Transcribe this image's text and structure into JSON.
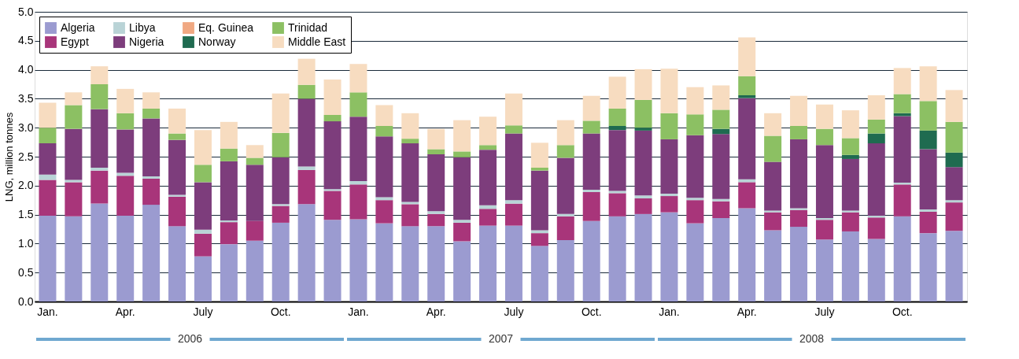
{
  "chart_data": {
    "type": "bar",
    "stacked": true,
    "ylabel": "LNG, million tonnes",
    "categories": [
      "Jan.",
      null,
      null,
      "Apr.",
      null,
      null,
      "July",
      null,
      null,
      "Oct.",
      null,
      null,
      "Jan.",
      null,
      null,
      "Apr.",
      null,
      null,
      "July",
      null,
      null,
      "Oct.",
      null,
      null,
      "Jan.",
      null,
      null,
      "Apr.",
      null,
      null,
      "July",
      null,
      null,
      "Oct.",
      null,
      null
    ],
    "series": [
      {
        "name": "Algeria",
        "color": "#9b9bd0",
        "values": [
          1.48,
          1.47,
          1.69,
          1.48,
          1.67,
          1.3,
          0.78,
          0.99,
          1.05,
          1.36,
          1.68,
          1.41,
          1.42,
          1.35,
          1.3,
          1.3,
          1.04,
          1.31,
          1.31,
          0.96,
          1.06,
          1.39,
          1.47,
          1.51,
          1.54,
          1.35,
          1.44,
          1.61,
          1.23,
          1.29,
          1.07,
          1.21,
          1.08,
          1.47,
          1.18,
          1.22
        ]
      },
      {
        "name": "Egypt",
        "color": "#a8357a",
        "values": [
          0.62,
          0.59,
          0.57,
          0.69,
          0.45,
          0.51,
          0.39,
          0.38,
          0.34,
          0.29,
          0.59,
          0.5,
          0.6,
          0.4,
          0.38,
          0.21,
          0.32,
          0.29,
          0.38,
          0.22,
          0.41,
          0.5,
          0.4,
          0.27,
          0.28,
          0.4,
          0.29,
          0.45,
          0.31,
          0.29,
          0.34,
          0.33,
          0.37,
          0.55,
          0.37,
          0.49
        ]
      },
      {
        "name": "Libya",
        "color": "#b9d3d6",
        "values": [
          0.09,
          0.04,
          0.05,
          0.05,
          0.04,
          0.03,
          0.07,
          0.03,
          0,
          0.03,
          0.06,
          0.03,
          0.06,
          0.05,
          0.04,
          0.05,
          0.05,
          0.06,
          0.06,
          0.05,
          0.04,
          0.04,
          0.04,
          0.05,
          0.04,
          0.04,
          0.04,
          0.05,
          0.03,
          0.03,
          0.03,
          0.03,
          0.03,
          0.03,
          0.04,
          0.04
        ]
      },
      {
        "name": "Nigeria",
        "color": "#7d3d7c",
        "values": [
          0.54,
          0.88,
          1.01,
          0.75,
          1.0,
          0.95,
          0.82,
          1.02,
          0.97,
          0.81,
          1.17,
          1.17,
          1.11,
          1.05,
          1.01,
          0.98,
          1.08,
          0.96,
          1.15,
          1.03,
          0.97,
          0.97,
          1.05,
          1.12,
          0.94,
          1.08,
          1.12,
          1.4,
          0.84,
          1.19,
          1.26,
          0.89,
          1.25,
          1.15,
          1.04,
          0.57
        ]
      },
      {
        "name": "Eq. Guinea",
        "color": "#f0a882",
        "values": [
          0,
          0,
          0,
          0,
          0,
          0,
          0,
          0,
          0,
          0,
          0,
          0,
          0,
          0,
          0,
          0,
          0,
          0,
          0,
          0,
          0,
          0,
          0,
          0,
          0,
          0,
          0,
          0,
          0,
          0,
          0,
          0,
          0,
          0,
          0,
          0
        ]
      },
      {
        "name": "Norway",
        "color": "#1f6b50",
        "values": [
          0,
          0,
          0,
          0,
          0,
          0,
          0,
          0,
          0,
          0,
          0,
          0,
          0,
          0,
          0,
          0,
          0,
          0,
          0,
          0,
          0,
          0,
          0.07,
          0.05,
          0,
          0,
          0.09,
          0.05,
          0,
          0,
          0,
          0.07,
          0.17,
          0.05,
          0.32,
          0.25
        ]
      },
      {
        "name": "Trinidad",
        "color": "#8cc063",
        "values": [
          0.27,
          0.41,
          0.43,
          0.28,
          0.17,
          0.11,
          0.3,
          0.22,
          0.12,
          0.42,
          0.24,
          0.11,
          0.42,
          0.18,
          0.08,
          0.09,
          0.1,
          0.08,
          0.14,
          0.05,
          0.22,
          0.22,
          0.3,
          0.48,
          0.45,
          0.36,
          0.33,
          0.33,
          0.45,
          0.23,
          0.28,
          0.29,
          0.24,
          0.33,
          0.51,
          0.53
        ]
      },
      {
        "name": "Middle East",
        "color": "#f7dcc0",
        "values": [
          0.43,
          0.22,
          0.31,
          0.42,
          0.28,
          0.43,
          0.6,
          0.46,
          0.22,
          0.68,
          0.45,
          0.61,
          0.49,
          0.36,
          0.44,
          0.35,
          0.54,
          0.49,
          0.55,
          0.43,
          0.43,
          0.43,
          0.55,
          0.53,
          0.77,
          0.47,
          0.42,
          0.67,
          0.39,
          0.52,
          0.42,
          0.48,
          0.42,
          0.45,
          0.6,
          0.55
        ]
      }
    ],
    "ylim": [
      0,
      5
    ],
    "yticks": [
      {
        "value": 0,
        "label": "0.0"
      },
      {
        "value": 0.5,
        "label": "0.5"
      },
      {
        "value": 1,
        "label": "1.0"
      },
      {
        "value": 1.5,
        "label": "1.5"
      },
      {
        "value": 2,
        "label": "2.0"
      },
      {
        "value": 2.5,
        "label": "2.5"
      },
      {
        "value": 3,
        "label": "3.0"
      },
      {
        "value": 3.5,
        "label": "3.5"
      },
      {
        "value": 4,
        "label": "4.0"
      },
      {
        "value": 4.5,
        "label": "4.5"
      },
      {
        "value": 5,
        "label": "5.0"
      }
    ],
    "grid": "y",
    "legend": "top left",
    "annotations": [
      "2006",
      "2007",
      "2008"
    ]
  }
}
